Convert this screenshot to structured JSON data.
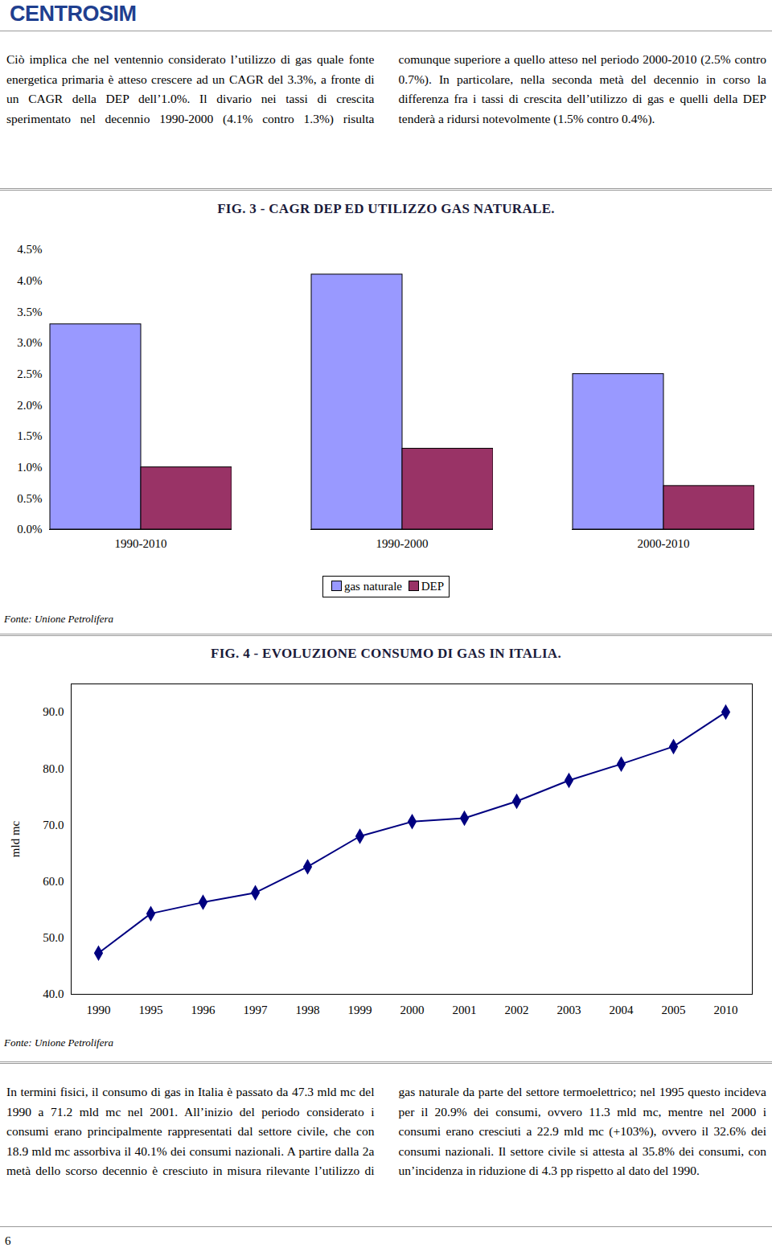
{
  "document": {
    "logo": "CENTROSIM",
    "intro": "Ciò implica che nel ventennio considerato l’utilizzo di gas quale fonte energetica primaria è atteso crescere ad un CAGR del 3.3%, a fronte di un CAGR della DEP dell’1.0%. Il divario nei tassi di crescita sperimentato nel decennio 1990-2000 (4.1% contro 1.3%) risulta comunque superiore a quello atteso nel periodo 2000-2010 (2.5% contro 0.7%). In particolare, nella seconda metà del decennio in corso la differenza fra i tassi di crescita dell’utilizzo di gas e quelli della DEP tenderà a ridursi notevolmente (1.5% contro 0.4%).",
    "body": "In termini fisici, il consumo di gas in Italia è passato da 47.3 mld mc del 1990 a 71.2 mld mc nel 2001. All’inizio del periodo considerato i consumi erano principalmente rappresentati dal settore civile, che con 18.9 mld mc assorbiva il 40.1% dei consumi nazionali. A partire dalla 2a metà dello scorso decennio è cresciuto in misura rilevante l’utilizzo di gas naturale da parte del settore termoelettrico; nel 1995 questo incideva per il 20.9% dei consumi, ovvero 11.3 mld mc, mentre nel 2000 i consumi erano cresciuti a 22.9 mld mc (+103%), ovvero il 32.6% dei consumi nazionali. Il settore civile si attesta al 35.8% dei consumi, con un’incidenza in riduzione di 4.3 pp rispetto al dato del 1990.",
    "page_number": "6"
  },
  "chart_data": [
    {
      "type": "bar",
      "title": "FIG. 3 - CAGR DEP ED UTILIZZO GAS NATURALE.",
      "source": "Fonte: Unione Petrolifera",
      "categories": [
        "1990-2010",
        "1990-2000",
        "2000-2010"
      ],
      "series": [
        {
          "name": "gas naturale",
          "color": "#9999ff",
          "values": [
            3.3,
            4.1,
            2.5
          ]
        },
        {
          "name": "DEP",
          "color": "#993366",
          "values": [
            1.0,
            1.3,
            0.7
          ]
        }
      ],
      "ylim": [
        0,
        4.5
      ],
      "yticks": [
        {
          "value": 0,
          "label": "0.0%"
        },
        {
          "value": 0.5,
          "label": "0.5%"
        },
        {
          "value": 1,
          "label": "1.0%"
        },
        {
          "value": 1.5,
          "label": "1.5%"
        },
        {
          "value": 2,
          "label": "2.0%"
        },
        {
          "value": 2.5,
          "label": "2.5%"
        },
        {
          "value": 3,
          "label": "3.0%"
        },
        {
          "value": 3.5,
          "label": "3.5%"
        },
        {
          "value": 4,
          "label": "4.0%"
        },
        {
          "value": 4.5,
          "label": "4.5%"
        }
      ],
      "grid": false,
      "legend": "bottom"
    },
    {
      "type": "line",
      "title": "FIG. 4 - EVOLUZIONE CONSUMO DI GAS IN ITALIA.",
      "source": "Fonte: Unione Petrolifera",
      "y_label": "mld mc",
      "categories": [
        "1990",
        "1995",
        "1996",
        "1997",
        "1998",
        "1999",
        "2000",
        "2001",
        "2002",
        "2003",
        "2004",
        "2005",
        "2010"
      ],
      "values": [
        47.3,
        54.3,
        56.3,
        58.0,
        62.6,
        68.0,
        70.6,
        71.2,
        74.2,
        77.9,
        80.8,
        83.9,
        90.0
      ],
      "color": "#000080",
      "marker": "diamond",
      "ylim": [
        40,
        95
      ],
      "yticks": [
        {
          "value": 40,
          "label": "40.0"
        },
        {
          "value": 50,
          "label": "50.0"
        },
        {
          "value": 60,
          "label": "60.0"
        },
        {
          "value": 70,
          "label": "70.0"
        },
        {
          "value": 80,
          "label": "80.0"
        },
        {
          "value": 90,
          "label": "90.0"
        }
      ],
      "grid": false
    }
  ]
}
